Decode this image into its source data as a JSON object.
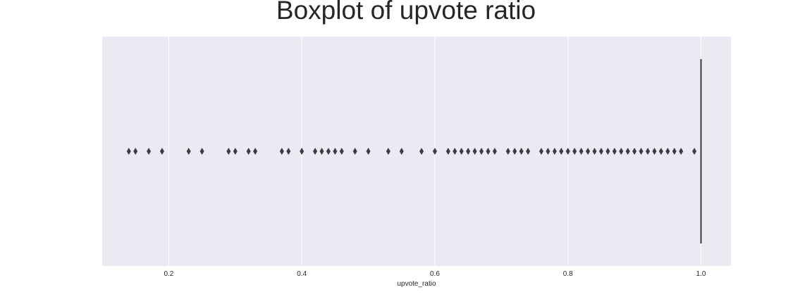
{
  "chart_data": {
    "type": "boxplot",
    "title": "Boxplot of upvote ratio",
    "xlabel": "upvote_ratio",
    "ylabel": "",
    "xlim": [
      0.1,
      1.045
    ],
    "xticks": [
      0.2,
      0.4,
      0.6,
      0.8,
      1.0
    ],
    "xtick_labels": [
      "0.2",
      "0.4",
      "0.6",
      "0.8",
      "1.0"
    ],
    "grid": true,
    "box": {
      "whisker_low": 1.0,
      "q1": 1.0,
      "median": 1.0,
      "q3": 1.0,
      "whisker_high": 1.0
    },
    "outliers": [
      0.14,
      0.15,
      0.17,
      0.19,
      0.23,
      0.25,
      0.29,
      0.3,
      0.32,
      0.33,
      0.37,
      0.38,
      0.4,
      0.42,
      0.43,
      0.44,
      0.45,
      0.46,
      0.48,
      0.5,
      0.53,
      0.55,
      0.58,
      0.6,
      0.62,
      0.63,
      0.64,
      0.65,
      0.66,
      0.67,
      0.68,
      0.69,
      0.71,
      0.72,
      0.73,
      0.74,
      0.76,
      0.77,
      0.78,
      0.79,
      0.8,
      0.81,
      0.82,
      0.83,
      0.84,
      0.85,
      0.86,
      0.87,
      0.88,
      0.89,
      0.9,
      0.91,
      0.92,
      0.93,
      0.94,
      0.95,
      0.96,
      0.97,
      0.99
    ],
    "colors": {
      "background": "#eaeaf2",
      "grid": "#ffffff",
      "marker": "#3b3b45",
      "box_line": "#3d3d3d"
    }
  }
}
